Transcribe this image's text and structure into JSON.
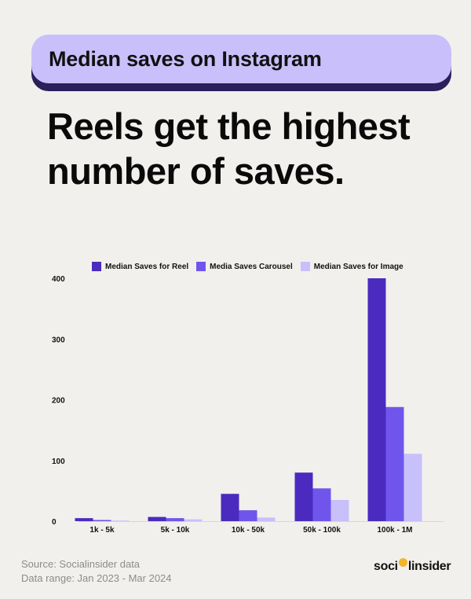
{
  "banner": {
    "title": "Median saves on Instagram"
  },
  "headline": "Reels get the highest number of saves.",
  "footer": {
    "source": "Source: Socialinsider data",
    "range": "Data range: Jan 2023 - Mar 2024"
  },
  "logo": {
    "text_before": "soci",
    "text_after": "linsider",
    "icon": "socialinsider-logo-icon"
  },
  "chart_data": {
    "type": "bar",
    "categories": [
      "1k - 5k",
      "5k - 10k",
      "10k - 50k",
      "50k - 100k",
      "100k - 1M"
    ],
    "series": [
      {
        "name": "Median Saves for Reel",
        "color": "#4b2bbf",
        "values": [
          5,
          7,
          45,
          80,
          400
        ]
      },
      {
        "name": "Media Saves Carousel",
        "color": "#7055ec",
        "values": [
          2,
          5,
          18,
          54,
          188
        ]
      },
      {
        "name": "Median Saves for Image",
        "color": "#c8c0fb",
        "values": [
          1,
          3,
          6,
          35,
          111
        ]
      }
    ],
    "yticks": [
      0,
      100,
      200,
      300,
      400
    ],
    "ylim": [
      0,
      400
    ],
    "grid": false,
    "legend": "top"
  }
}
